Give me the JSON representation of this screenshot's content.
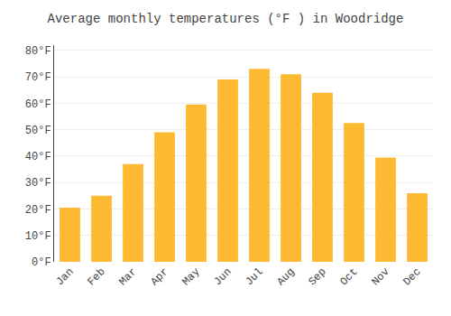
{
  "chart_data": {
    "type": "bar",
    "title": "Average monthly temperatures (°F ) in Woodridge",
    "categories": [
      "Jan",
      "Feb",
      "Mar",
      "Apr",
      "May",
      "Jun",
      "Jul",
      "Aug",
      "Sep",
      "Oct",
      "Nov",
      "Dec"
    ],
    "values": [
      20.5,
      25.0,
      37.0,
      49.0,
      59.5,
      69.0,
      73.0,
      71.0,
      64.0,
      52.5,
      39.5,
      26.0
    ],
    "color": "#FDB932",
    "ylim": [
      0,
      82
    ],
    "yticks": [
      {
        "value": 0,
        "label": "0°F"
      },
      {
        "value": 10,
        "label": "10°F"
      },
      {
        "value": 20,
        "label": "20°F"
      },
      {
        "value": 30,
        "label": "30°F"
      },
      {
        "value": 40,
        "label": "40°F"
      },
      {
        "value": 50,
        "label": "50°F"
      },
      {
        "value": 60,
        "label": "60°F"
      },
      {
        "value": 70,
        "label": "70°F"
      },
      {
        "value": 80,
        "label": "80°F"
      }
    ],
    "grid": true
  }
}
